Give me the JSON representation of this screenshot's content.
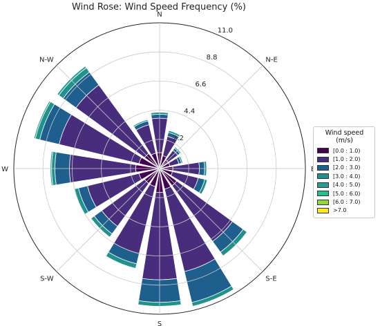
{
  "chart_data": {
    "type": "polar-stacked-bar",
    "title": "Wind Rose: Wind Speed Frequency (%)",
    "direction_labels": [
      "N",
      "N-E",
      "E",
      "S-E",
      "S",
      "S-W",
      "W",
      "N-W"
    ],
    "radial_tick_labels": [
      "2.2",
      "4.4",
      "6.6",
      "8.8",
      "11.0"
    ],
    "radial_ticks": [
      2.2,
      4.4,
      6.6,
      8.8,
      11.0
    ],
    "r_max": 11.0,
    "sector_directions_deg": [
      0,
      22.5,
      45,
      67.5,
      90,
      112.5,
      135,
      157.5,
      180,
      202.5,
      225,
      247.5,
      270,
      292.5,
      315,
      337.5
    ],
    "sector_width_deg": 18,
    "legend_title": "Wind speed (m/s)",
    "series": [
      {
        "name": "[0.0 : 1.0)",
        "color": "#440154",
        "values": [
          1.2,
          1.0,
          0.8,
          0.8,
          1.0,
          1.0,
          1.6,
          1.6,
          1.8,
          1.4,
          1.4,
          1.6,
          1.8,
          1.6,
          1.4,
          1.2
        ]
      },
      {
        "name": "[1.0 : 2.0)",
        "color": "#472d7b",
        "values": [
          2.6,
          1.5,
          0.9,
          0.7,
          2.0,
          2.0,
          5.2,
          6.4,
          6.6,
          5.2,
          4.0,
          4.0,
          5.0,
          6.2,
          6.4,
          2.2
        ]
      },
      {
        "name": "[2.0 : 3.0)",
        "color": "#1f5f8e",
        "values": [
          0.3,
          0.3,
          0.2,
          0.2,
          0.4,
          0.5,
          1.0,
          2.4,
          1.7,
          0.8,
          0.7,
          0.7,
          1.1,
          1.5,
          1.2,
          0.3
        ]
      },
      {
        "name": "[3.0 : 4.0)",
        "color": "#21918c",
        "values": [
          0.15,
          0.15,
          0.1,
          0.1,
          0.15,
          0.2,
          0.35,
          0.3,
          0.3,
          0.35,
          0.3,
          0.3,
          0.25,
          0.35,
          0.4,
          0.1
        ]
      },
      {
        "name": "[4.0 : 5.0)",
        "color": "#2a9d8f",
        "values": [
          0,
          0,
          0,
          0,
          0,
          0,
          0,
          0,
          0,
          0,
          0,
          0,
          0.1,
          0.1,
          0.15,
          0
        ]
      },
      {
        "name": "[5.0 : 6.0)",
        "color": "#22c38a",
        "values": [
          0,
          0,
          0,
          0,
          0,
          0,
          0,
          0,
          0,
          0,
          0,
          0,
          0,
          0,
          0,
          0
        ]
      },
      {
        "name": "[6.0 : 7.0)",
        "color": "#8fd744",
        "values": [
          0,
          0,
          0,
          0,
          0,
          0,
          0,
          0,
          0,
          0,
          0,
          0,
          0,
          0,
          0,
          0
        ]
      },
      {
        "name": ">7.0",
        "color": "#fde725",
        "values": [
          0,
          0,
          0,
          0,
          0,
          0,
          0,
          0,
          0,
          0,
          0,
          0,
          0,
          0,
          0,
          0
        ]
      }
    ]
  }
}
